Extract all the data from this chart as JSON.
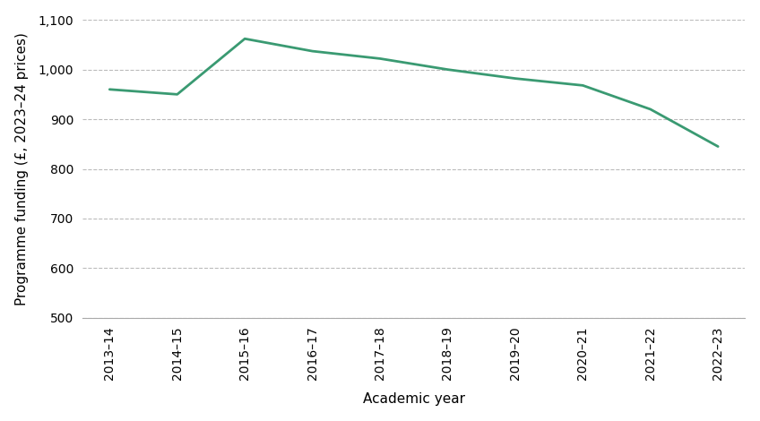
{
  "x_labels": [
    "2013–14",
    "2014–15",
    "2015–16",
    "2016–17",
    "2017–18",
    "2018–19",
    "2019–20",
    "2020–21",
    "2021–22",
    "2022–23"
  ],
  "y_values": [
    960,
    950,
    1062,
    1037,
    1022,
    1000,
    982,
    968,
    920,
    845
  ],
  "line_color": "#3a9a72",
  "line_width": 2.0,
  "ylabel": "Programme funding (£, 2023–24 prices)",
  "xlabel": "Academic year",
  "ylim": [
    500,
    1100
  ],
  "yticks": [
    500,
    600,
    700,
    800,
    900,
    1000,
    1100
  ],
  "grid_color": "#bbbbbb",
  "grid_linestyle": "--",
  "background_color": "#ffffff",
  "tick_fontsize": 10,
  "label_fontsize": 11
}
